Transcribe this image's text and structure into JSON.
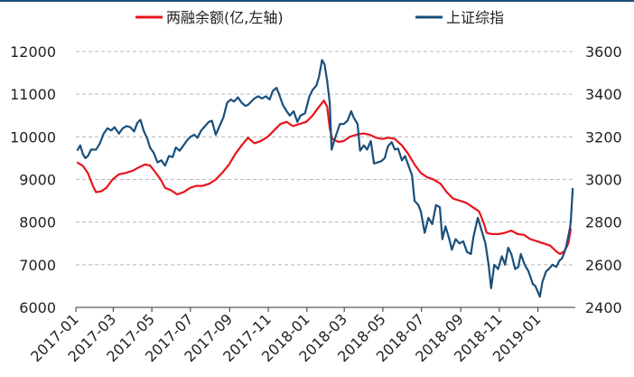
{
  "chart_data": {
    "type": "line",
    "title": "",
    "legend_position": "top",
    "grid": {
      "horizontal": true,
      "style": "dashed"
    },
    "x_axis": {
      "type": "date",
      "range": [
        "2017-01-01",
        "2019-03-01"
      ],
      "tick_labels": [
        "2017-01",
        "2017-03",
        "2017-05",
        "2017-07",
        "2017-09",
        "2017-11",
        "2018-01",
        "2018-03",
        "2018-05",
        "2018-07",
        "2018-09",
        "2018-11",
        "2019-01"
      ]
    },
    "y_left": {
      "ylim": [
        6000,
        12000
      ],
      "ticks": [
        6000,
        7000,
        8000,
        9000,
        10000,
        11000,
        12000
      ]
    },
    "y_right": {
      "ylim": [
        2400,
        3600
      ],
      "ticks": [
        2400,
        2600,
        2800,
        3000,
        3200,
        3400,
        3600
      ]
    },
    "series": [
      {
        "name": "两融余额(亿,左轴)",
        "axis": "left",
        "color": "#e8141c",
        "points": [
          [
            "2017-01-03",
            9400
          ],
          [
            "2017-01-12",
            9320
          ],
          [
            "2017-01-20",
            9150
          ],
          [
            "2017-01-28",
            8850
          ],
          [
            "2017-02-02",
            8700
          ],
          [
            "2017-02-10",
            8720
          ],
          [
            "2017-02-18",
            8800
          ],
          [
            "2017-02-28",
            9000
          ],
          [
            "2017-03-10",
            9120
          ],
          [
            "2017-03-20",
            9150
          ],
          [
            "2017-03-31",
            9200
          ],
          [
            "2017-04-10",
            9280
          ],
          [
            "2017-04-20",
            9350
          ],
          [
            "2017-04-28",
            9330
          ],
          [
            "2017-05-05",
            9200
          ],
          [
            "2017-05-15",
            9000
          ],
          [
            "2017-05-22",
            8800
          ],
          [
            "2017-05-31",
            8750
          ],
          [
            "2017-06-10",
            8650
          ],
          [
            "2017-06-20",
            8700
          ],
          [
            "2017-06-30",
            8800
          ],
          [
            "2017-07-10",
            8850
          ],
          [
            "2017-07-20",
            8850
          ],
          [
            "2017-07-31",
            8900
          ],
          [
            "2017-08-10",
            9000
          ],
          [
            "2017-08-20",
            9150
          ],
          [
            "2017-08-31",
            9350
          ],
          [
            "2017-09-10",
            9600
          ],
          [
            "2017-09-20",
            9800
          ],
          [
            "2017-09-30",
            9980
          ],
          [
            "2017-10-10",
            9850
          ],
          [
            "2017-10-20",
            9900
          ],
          [
            "2017-10-31",
            10000
          ],
          [
            "2017-11-10",
            10150
          ],
          [
            "2017-11-20",
            10300
          ],
          [
            "2017-11-30",
            10350
          ],
          [
            "2017-12-10",
            10250
          ],
          [
            "2017-12-20",
            10300
          ],
          [
            "2017-12-31",
            10350
          ],
          [
            "2018-01-10",
            10500
          ],
          [
            "2018-01-20",
            10700
          ],
          [
            "2018-01-28",
            10850
          ],
          [
            "2018-02-02",
            10700
          ],
          [
            "2018-02-06",
            10200
          ],
          [
            "2018-02-10",
            9950
          ],
          [
            "2018-02-20",
            9880
          ],
          [
            "2018-02-28",
            9900
          ],
          [
            "2018-03-10",
            10000
          ],
          [
            "2018-03-20",
            10050
          ],
          [
            "2018-03-31",
            10080
          ],
          [
            "2018-04-10",
            10050
          ],
          [
            "2018-04-20",
            9980
          ],
          [
            "2018-04-30",
            9950
          ],
          [
            "2018-05-10",
            9980
          ],
          [
            "2018-05-20",
            9950
          ],
          [
            "2018-05-31",
            9800
          ],
          [
            "2018-06-10",
            9600
          ],
          [
            "2018-06-20",
            9350
          ],
          [
            "2018-06-30",
            9150
          ],
          [
            "2018-07-10",
            9050
          ],
          [
            "2018-07-20",
            9000
          ],
          [
            "2018-07-31",
            8900
          ],
          [
            "2018-08-10",
            8700
          ],
          [
            "2018-08-20",
            8550
          ],
          [
            "2018-08-31",
            8500
          ],
          [
            "2018-09-10",
            8450
          ],
          [
            "2018-09-20",
            8350
          ],
          [
            "2018-09-30",
            8250
          ],
          [
            "2018-10-08",
            7950
          ],
          [
            "2018-10-12",
            7750
          ],
          [
            "2018-10-20",
            7720
          ],
          [
            "2018-10-31",
            7720
          ],
          [
            "2018-11-10",
            7750
          ],
          [
            "2018-11-20",
            7800
          ],
          [
            "2018-11-30",
            7720
          ],
          [
            "2018-12-10",
            7700
          ],
          [
            "2018-12-20",
            7600
          ],
          [
            "2018-12-31",
            7550
          ],
          [
            "2019-01-10",
            7500
          ],
          [
            "2019-01-20",
            7450
          ],
          [
            "2019-01-31",
            7300
          ],
          [
            "2019-02-05",
            7250
          ],
          [
            "2019-02-12",
            7320
          ],
          [
            "2019-02-18",
            7500
          ],
          [
            "2019-02-22",
            7850
          ]
        ]
      },
      {
        "name": "上证综指",
        "axis": "right",
        "color": "#1a4f7a",
        "points": [
          [
            "2017-01-03",
            3135
          ],
          [
            "2017-01-08",
            3160
          ],
          [
            "2017-01-12",
            3120
          ],
          [
            "2017-01-16",
            3100
          ],
          [
            "2017-01-20",
            3110
          ],
          [
            "2017-01-25",
            3140
          ],
          [
            "2017-02-02",
            3140
          ],
          [
            "2017-02-08",
            3170
          ],
          [
            "2017-02-14",
            3215
          ],
          [
            "2017-02-20",
            3240
          ],
          [
            "2017-02-26",
            3230
          ],
          [
            "2017-03-03",
            3245
          ],
          [
            "2017-03-10",
            3215
          ],
          [
            "2017-03-16",
            3240
          ],
          [
            "2017-03-22",
            3250
          ],
          [
            "2017-03-28",
            3245
          ],
          [
            "2017-04-03",
            3225
          ],
          [
            "2017-04-08",
            3265
          ],
          [
            "2017-04-13",
            3280
          ],
          [
            "2017-04-18",
            3230
          ],
          [
            "2017-04-24",
            3190
          ],
          [
            "2017-04-28",
            3150
          ],
          [
            "2017-05-04",
            3125
          ],
          [
            "2017-05-10",
            3080
          ],
          [
            "2017-05-16",
            3090
          ],
          [
            "2017-05-22",
            3065
          ],
          [
            "2017-05-28",
            3110
          ],
          [
            "2017-06-03",
            3105
          ],
          [
            "2017-06-08",
            3150
          ],
          [
            "2017-06-14",
            3135
          ],
          [
            "2017-06-20",
            3160
          ],
          [
            "2017-06-26",
            3185
          ],
          [
            "2017-07-01",
            3200
          ],
          [
            "2017-07-07",
            3210
          ],
          [
            "2017-07-12",
            3195
          ],
          [
            "2017-07-18",
            3230
          ],
          [
            "2017-07-24",
            3250
          ],
          [
            "2017-07-30",
            3270
          ],
          [
            "2017-08-04",
            3275
          ],
          [
            "2017-08-10",
            3210
          ],
          [
            "2017-08-16",
            3250
          ],
          [
            "2017-08-22",
            3290
          ],
          [
            "2017-08-28",
            3360
          ],
          [
            "2017-09-03",
            3375
          ],
          [
            "2017-09-08",
            3365
          ],
          [
            "2017-09-14",
            3385
          ],
          [
            "2017-09-20",
            3360
          ],
          [
            "2017-09-26",
            3345
          ],
          [
            "2017-09-30",
            3350
          ],
          [
            "2017-10-10",
            3380
          ],
          [
            "2017-10-16",
            3390
          ],
          [
            "2017-10-22",
            3380
          ],
          [
            "2017-10-28",
            3390
          ],
          [
            "2017-11-03",
            3375
          ],
          [
            "2017-11-08",
            3415
          ],
          [
            "2017-11-14",
            3430
          ],
          [
            "2017-11-18",
            3400
          ],
          [
            "2017-11-24",
            3350
          ],
          [
            "2017-11-30",
            3320
          ],
          [
            "2017-12-05",
            3300
          ],
          [
            "2017-12-11",
            3320
          ],
          [
            "2017-12-17",
            3270
          ],
          [
            "2017-12-22",
            3300
          ],
          [
            "2017-12-29",
            3310
          ],
          [
            "2018-01-05",
            3390
          ],
          [
            "2018-01-10",
            3420
          ],
          [
            "2018-01-16",
            3440
          ],
          [
            "2018-01-20",
            3480
          ],
          [
            "2018-01-25",
            3560
          ],
          [
            "2018-01-29",
            3540
          ],
          [
            "2018-02-02",
            3460
          ],
          [
            "2018-02-06",
            3360
          ],
          [
            "2018-02-09",
            3140
          ],
          [
            "2018-02-14",
            3190
          ],
          [
            "2018-02-22",
            3260
          ],
          [
            "2018-02-28",
            3260
          ],
          [
            "2018-03-06",
            3275
          ],
          [
            "2018-03-12",
            3320
          ],
          [
            "2018-03-16",
            3290
          ],
          [
            "2018-03-22",
            3260
          ],
          [
            "2018-03-26",
            3135
          ],
          [
            "2018-04-01",
            3160
          ],
          [
            "2018-04-06",
            3140
          ],
          [
            "2018-04-12",
            3180
          ],
          [
            "2018-04-17",
            3075
          ],
          [
            "2018-04-23",
            3080
          ],
          [
            "2018-04-28",
            3085
          ],
          [
            "2018-05-04",
            3100
          ],
          [
            "2018-05-09",
            3155
          ],
          [
            "2018-05-15",
            3175
          ],
          [
            "2018-05-20",
            3140
          ],
          [
            "2018-05-25",
            3145
          ],
          [
            "2018-05-31",
            3090
          ],
          [
            "2018-06-05",
            3110
          ],
          [
            "2018-06-11",
            3060
          ],
          [
            "2018-06-16",
            3020
          ],
          [
            "2018-06-20",
            2900
          ],
          [
            "2018-06-26",
            2880
          ],
          [
            "2018-06-30",
            2850
          ],
          [
            "2018-07-06",
            2750
          ],
          [
            "2018-07-12",
            2820
          ],
          [
            "2018-07-18",
            2790
          ],
          [
            "2018-07-24",
            2880
          ],
          [
            "2018-07-30",
            2870
          ],
          [
            "2018-08-03",
            2720
          ],
          [
            "2018-08-08",
            2780
          ],
          [
            "2018-08-14",
            2720
          ],
          [
            "2018-08-18",
            2670
          ],
          [
            "2018-08-24",
            2720
          ],
          [
            "2018-08-30",
            2700
          ],
          [
            "2018-09-05",
            2710
          ],
          [
            "2018-09-11",
            2660
          ],
          [
            "2018-09-17",
            2650
          ],
          [
            "2018-09-21",
            2730
          ],
          [
            "2018-09-28",
            2820
          ],
          [
            "2018-10-10",
            2700
          ],
          [
            "2018-10-15",
            2600
          ],
          [
            "2018-10-19",
            2490
          ],
          [
            "2018-10-24",
            2600
          ],
          [
            "2018-10-30",
            2580
          ],
          [
            "2018-11-05",
            2640
          ],
          [
            "2018-11-10",
            2600
          ],
          [
            "2018-11-15",
            2680
          ],
          [
            "2018-11-20",
            2650
          ],
          [
            "2018-11-26",
            2580
          ],
          [
            "2018-12-01",
            2590
          ],
          [
            "2018-12-05",
            2650
          ],
          [
            "2018-12-11",
            2600
          ],
          [
            "2018-12-17",
            2570
          ],
          [
            "2018-12-24",
            2510
          ],
          [
            "2018-12-28",
            2500
          ],
          [
            "2019-01-04",
            2450
          ],
          [
            "2019-01-08",
            2520
          ],
          [
            "2019-01-14",
            2570
          ],
          [
            "2019-01-18",
            2580
          ],
          [
            "2019-01-24",
            2600
          ],
          [
            "2019-01-30",
            2590
          ],
          [
            "2019-02-04",
            2620
          ],
          [
            "2019-02-08",
            2630
          ],
          [
            "2019-02-12",
            2660
          ],
          [
            "2019-02-15",
            2690
          ],
          [
            "2019-02-19",
            2750
          ],
          [
            "2019-02-21",
            2780
          ],
          [
            "2019-02-22",
            2810
          ],
          [
            "2019-02-25",
            2960
          ]
        ]
      }
    ]
  }
}
